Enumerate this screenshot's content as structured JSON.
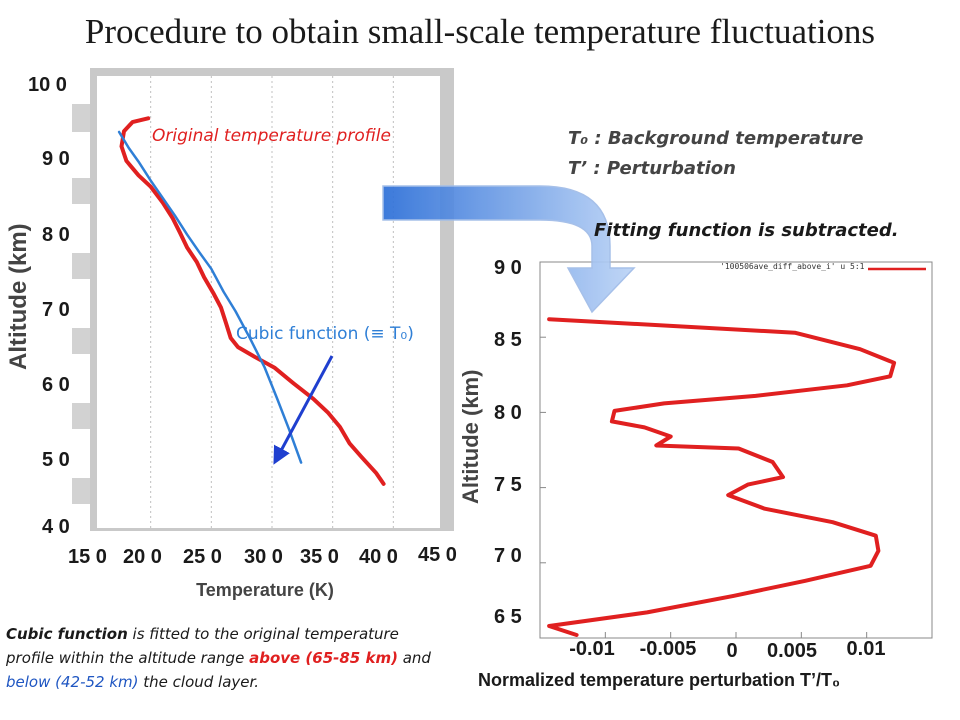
{
  "title": "Procedure to obtain small-scale temperature fluctuations",
  "notes": {
    "background": "T₀ : Background temperature",
    "perturbation": "T’ : Perturbation",
    "fitting": "Fitting function is subtracted."
  },
  "caption": {
    "part1": "Cubic function",
    "part2": " is fitted to the original temperature profile within the altitude range ",
    "part3": "above (65-85 km)",
    "part4": " and ",
    "part5": "below (42-52 km)",
    "part6": " the cloud layer."
  },
  "colors": {
    "profile": "#e02020",
    "fit": "#2f7fd6",
    "arrow": "#1f3fcf"
  },
  "chart_data": [
    {
      "type": "line",
      "title": "",
      "xlabel": "Temperature (K)",
      "ylabel": "Altitude (km)",
      "xlim": [
        150,
        450
      ],
      "ylim": [
        40,
        100
      ],
      "xticks": [
        "15 0",
        "20 0",
        "25 0",
        "30 0",
        "35 0",
        "40 0",
        "45 0"
      ],
      "yticks": [
        "4 0",
        "5 0",
        "6 0",
        "7 0",
        "8 0",
        "9 0",
        "10 0"
      ],
      "annotations": {
        "original": "Original temperature profile",
        "cubic": "Cubic function (≡ T₀)"
      },
      "series": [
        {
          "name": "Original temperature profile",
          "x": [
            198,
            185,
            178,
            176,
            180,
            190,
            200,
            210,
            218,
            224,
            230,
            238,
            244,
            252,
            258,
            262,
            266,
            272,
            286,
            302,
            318,
            334,
            346,
            356,
            364,
            374,
            386,
            392
          ],
          "y": [
            94.3,
            93.8,
            92.6,
            90.6,
            88.7,
            86.8,
            85.3,
            83.2,
            81.2,
            79.3,
            77.3,
            75.4,
            73.4,
            71.2,
            69.4,
            67.4,
            65.4,
            64.2,
            62.9,
            61.5,
            59.4,
            57.4,
            55.6,
            53.7,
            51.5,
            49.7,
            47.6,
            46.2
          ]
        },
        {
          "name": "Cubic function",
          "x": [
            174,
            182,
            190,
            200,
            210,
            220,
            230,
            240,
            250,
            260,
            270,
            282,
            294,
            304,
            314,
            324
          ],
          "y": [
            92.5,
            90.4,
            88.6,
            86.1,
            83.8,
            81.5,
            79.0,
            76.7,
            74.5,
            71.5,
            68.9,
            65.3,
            61.5,
            57.5,
            53.4,
            49.0
          ]
        }
      ]
    },
    {
      "type": "line",
      "title": "",
      "xlabel": "Normalized temperature perturbation T’/T₀",
      "ylabel": "Altitude (km)",
      "xlim": [
        -0.015,
        0.015
      ],
      "ylim": [
        65,
        90
      ],
      "xticks": [
        "-0.01",
        "-0.005",
        "0",
        "0.005",
        "0.01"
      ],
      "yticks": [
        "6 5",
        "7 0",
        "7 5",
        "8 0",
        "8 5",
        "9 0"
      ],
      "legend": "'100506ave_diff_above_i' u 5:1",
      "series": [
        {
          "name": "'100506ave_diff_above_i' u 5:1",
          "x": [
            -0.0143,
            0.0045,
            0.0095,
            0.0121,
            0.0118,
            0.0085,
            0.0015,
            -0.0055,
            -0.0093,
            -0.0095,
            -0.007,
            -0.005,
            -0.0061,
            0.0002,
            0.0028,
            0.0036,
            0.0009,
            -0.0006,
            0.0022,
            0.0074,
            0.0107,
            0.0109,
            0.0103,
            0.0053,
            -0.0002,
            -0.0068,
            -0.0143,
            -0.0122
          ],
          "y": [
            86.2,
            85.3,
            84.2,
            83.3,
            82.4,
            81.8,
            81.1,
            80.6,
            80.1,
            79.4,
            79.0,
            78.4,
            77.8,
            77.6,
            76.7,
            75.7,
            75.2,
            74.5,
            73.6,
            72.7,
            71.8,
            70.8,
            69.8,
            68.8,
            67.8,
            66.7,
            65.8,
            65.2
          ]
        }
      ]
    }
  ]
}
